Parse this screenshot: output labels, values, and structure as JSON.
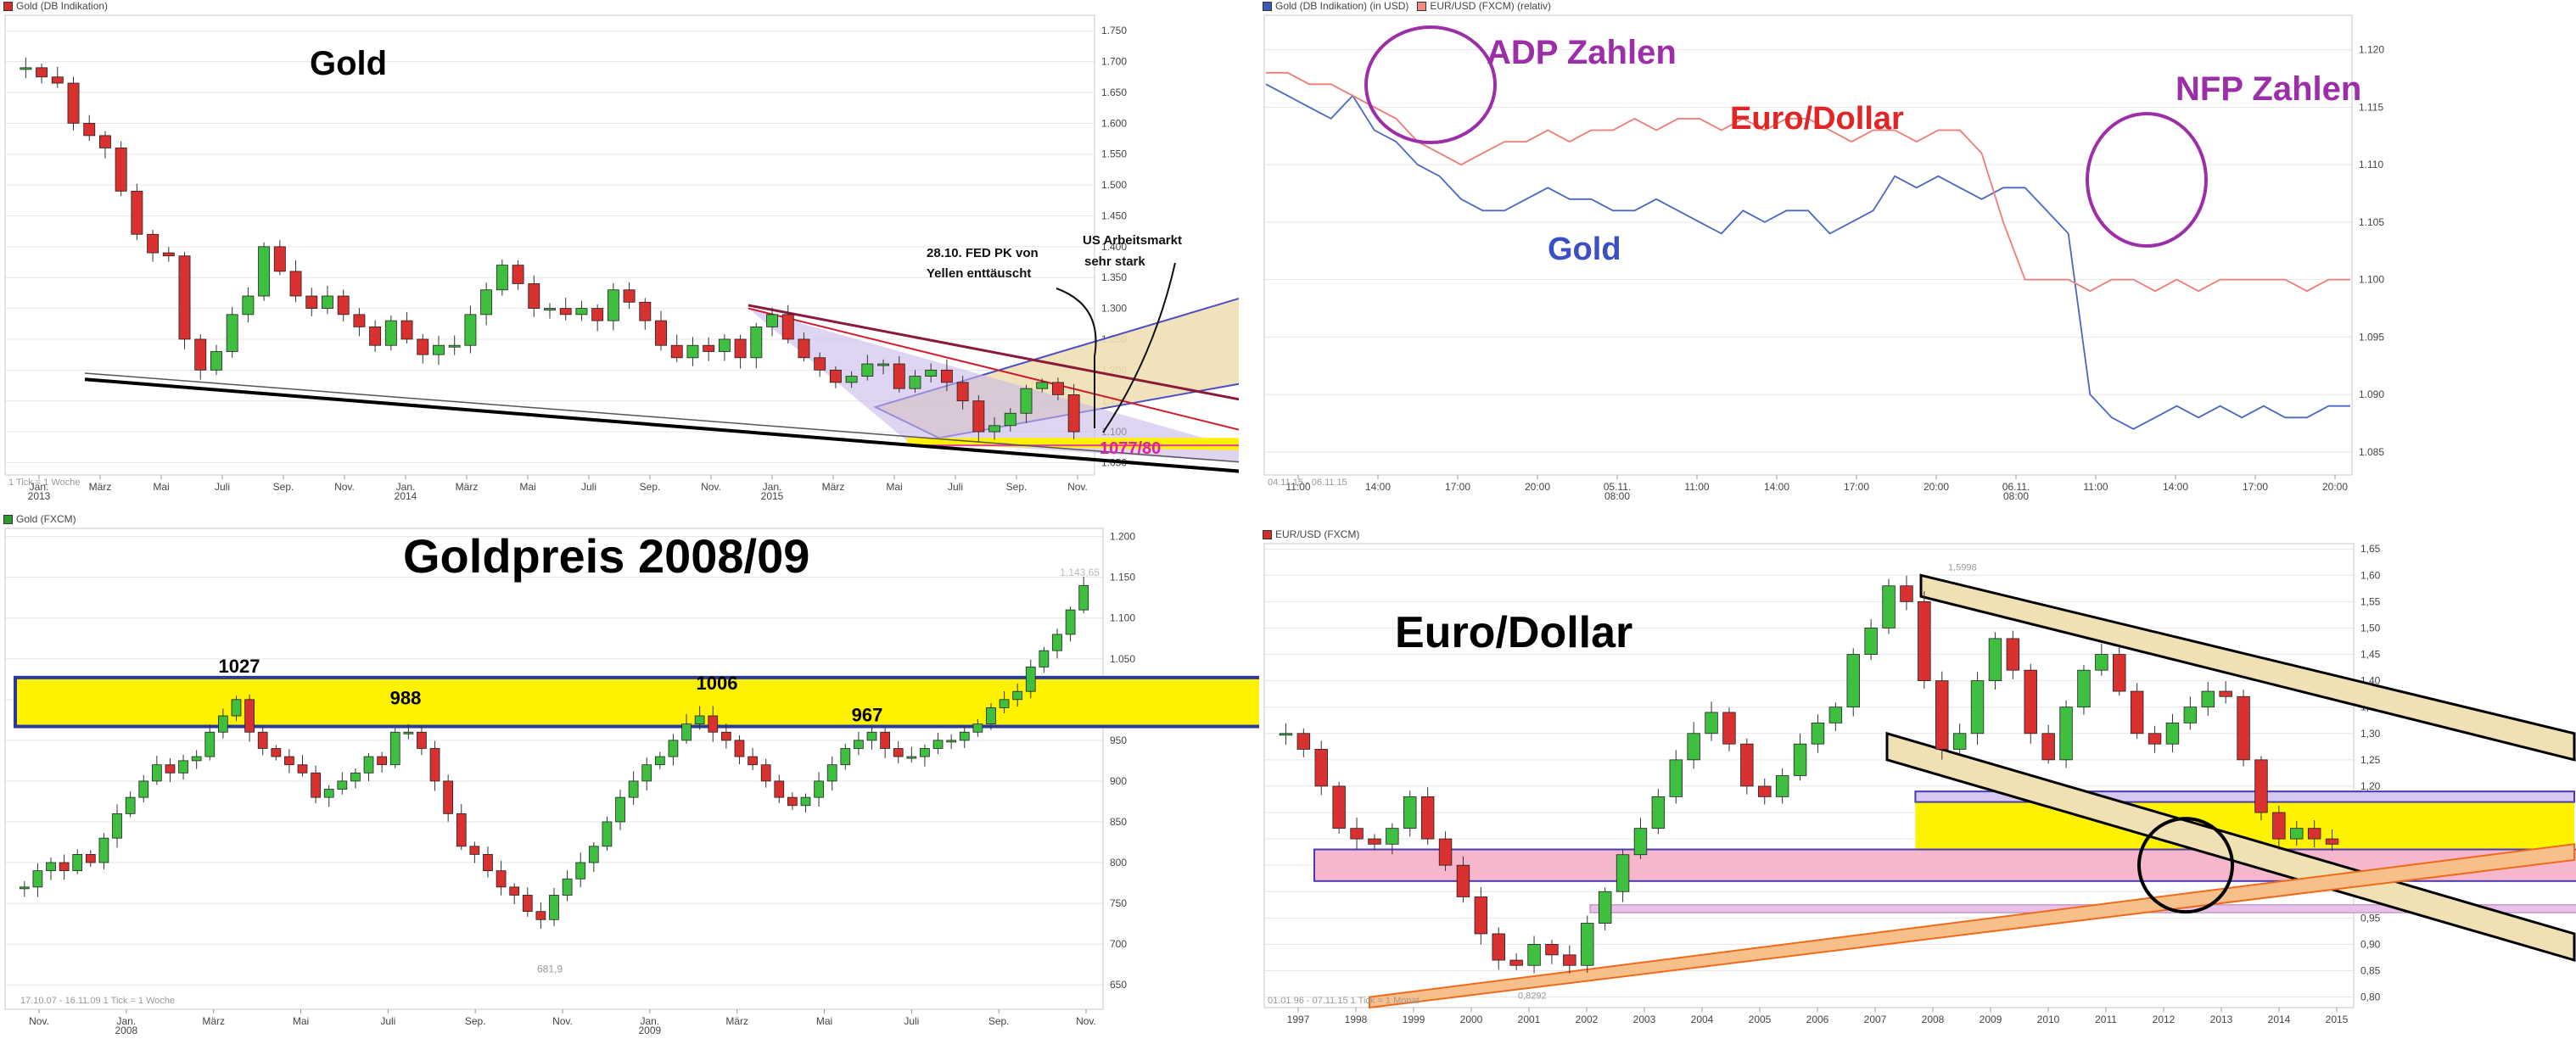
{
  "chart_data": [
    {
      "id": "gold_weekly",
      "type": "candlestick",
      "legend": [
        {
          "label": "Gold (DB Indikation)",
          "color": "#d32f2f"
        }
      ],
      "title": "Gold",
      "y_ticks": [
        "1.750",
        "1.700",
        "1.650",
        "1.600",
        "1.550",
        "1.500",
        "1.450",
        "1.400",
        "1.350",
        "1.300",
        "1.250",
        "1.200",
        "1.150",
        "1.100",
        "1.050"
      ],
      "y_tick_values": [
        1750,
        1700,
        1650,
        1600,
        1550,
        1500,
        1450,
        1400,
        1350,
        1300,
        1250,
        1200,
        1150,
        1100,
        1050
      ],
      "ylim": [
        1030,
        1775
      ],
      "x_labels": [
        "Jan.\n2013",
        "März",
        "Mai",
        "Juli",
        "Sep.",
        "Nov.",
        "Jan.\n2014",
        "März",
        "Mai",
        "Juli",
        "Sep.",
        "Nov.",
        "Jan.\n2015",
        "März",
        "Mai",
        "Juli",
        "Sep.",
        "Nov."
      ],
      "footer": "1 Tick = 1 Woche",
      "price_path": [
        1690,
        1675,
        1665,
        1600,
        1580,
        1560,
        1490,
        1420,
        1390,
        1385,
        1250,
        1200,
        1230,
        1290,
        1320,
        1400,
        1360,
        1320,
        1300,
        1320,
        1290,
        1270,
        1240,
        1280,
        1250,
        1225,
        1240,
        1240,
        1290,
        1330,
        1370,
        1340,
        1300,
        1300,
        1290,
        1300,
        1280,
        1330,
        1310,
        1280,
        1240,
        1220,
        1240,
        1230,
        1250,
        1220,
        1270,
        1290,
        1250,
        1220,
        1200,
        1180,
        1190,
        1210,
        1210,
        1170,
        1190,
        1200,
        1180,
        1150,
        1100,
        1110,
        1130,
        1170,
        1180,
        1160,
        1100
      ],
      "annotations": [
        {
          "text": "28.10. FED PK von",
          "kind": "note"
        },
        {
          "text": "Yellen enttäuscht",
          "kind": "note"
        },
        {
          "text": "US Arbeitsmarkt",
          "kind": "note"
        },
        {
          "text": "sehr stark",
          "kind": "note"
        },
        {
          "text": "1077/80",
          "kind": "level"
        }
      ],
      "level_value": 1078
    },
    {
      "id": "intraday",
      "type": "line",
      "legend": [
        {
          "label": "Gold (DB Indikation) (in USD)",
          "color": "#3b5bb5"
        },
        {
          "label": "EUR/USD (FXCM) (relativ)",
          "color": "#f28b82"
        }
      ],
      "series": [
        {
          "name": "Gold",
          "color": "#4a67c4",
          "values": [
            1117,
            1116,
            1115,
            1114,
            1116,
            1113,
            1112,
            1110,
            1109,
            1107,
            1106,
            1106,
            1107,
            1108,
            1107,
            1107,
            1106,
            1106,
            1107,
            1106,
            1105,
            1104,
            1106,
            1105,
            1106,
            1106,
            1104,
            1105,
            1106,
            1109,
            1108,
            1109,
            1108,
            1107,
            1108,
            1108,
            1106,
            1104,
            1090,
            1088,
            1087,
            1088,
            1089,
            1088,
            1089,
            1088,
            1089,
            1088,
            1088,
            1089,
            1089
          ]
        },
        {
          "name": "Euro/Dollar",
          "color": "#f07b74",
          "values": [
            1118,
            1118,
            1117,
            1117,
            1116,
            1115,
            1114,
            1112,
            1111,
            1110,
            1111,
            1112,
            1112,
            1113,
            1112,
            1113,
            1113,
            1114,
            1113,
            1114,
            1114,
            1113,
            1114,
            1113,
            1114,
            1114,
            1113,
            1112,
            1113,
            1113,
            1112,
            1113,
            1113,
            1111,
            1105,
            1100,
            1100,
            1100,
            1099,
            1100,
            1100,
            1099,
            1100,
            1099,
            1100,
            1100,
            1100,
            1100,
            1099,
            1100,
            1100
          ]
        }
      ],
      "ylim": [
        1083,
        1123
      ],
      "y_ticks": [
        "1.120",
        "1.115",
        "1.110",
        "1.105",
        "1.100",
        "1.095",
        "1.090",
        "1.085"
      ],
      "y_tick_values": [
        1120,
        1115,
        1110,
        1105,
        1100,
        1095,
        1090,
        1085
      ],
      "x_labels": [
        "11:00",
        "14:00",
        "17:00",
        "20:00",
        "05.11.\n08:00",
        "11:00",
        "14:00",
        "17:00",
        "20:00",
        "06.11.\n08:00",
        "11:00",
        "14:00",
        "17:00",
        "20:00"
      ],
      "footer": "04.11.15 - 06.11.15",
      "annotations": [
        {
          "text": "ADP Zahlen",
          "color": "#9c2ea8"
        },
        {
          "text": "NFP Zahlen",
          "color": "#9c2ea8"
        },
        {
          "text": "Euro/Dollar",
          "color": "#e12424"
        },
        {
          "text": "Gold",
          "color": "#3b4fc4"
        }
      ]
    },
    {
      "id": "gold_2008_09",
      "type": "candlestick",
      "legend": [
        {
          "label": "Gold (FXCM)",
          "color": "#2e9a2e"
        }
      ],
      "title": "Goldpreis 2008/09",
      "y_ticks": [
        "1.200",
        "1.150",
        "1.100",
        "1.050",
        "1.000",
        "950",
        "900",
        "850",
        "800",
        "750",
        "700",
        "650"
      ],
      "y_tick_values": [
        1200,
        1150,
        1100,
        1050,
        1000,
        950,
        900,
        850,
        800,
        750,
        700,
        650
      ],
      "ylim": [
        620,
        1210
      ],
      "x_labels": [
        "Nov.",
        "Jan.\n2008",
        "März",
        "Mai",
        "Juli",
        "Sep.",
        "Nov.",
        "Jan.\n2009",
        "März",
        "Mai",
        "Juli",
        "Sep.",
        "Nov."
      ],
      "footer": "17.10.07 - 16.11.09   1 Tick = 1 Woche",
      "price_path": [
        770,
        790,
        800,
        790,
        810,
        800,
        830,
        860,
        880,
        900,
        920,
        910,
        925,
        930,
        960,
        980,
        1000,
        960,
        940,
        930,
        920,
        910,
        880,
        890,
        900,
        910,
        930,
        920,
        960,
        960,
        940,
        900,
        860,
        820,
        810,
        790,
        770,
        760,
        740,
        730,
        760,
        780,
        800,
        820,
        850,
        880,
        900,
        920,
        930,
        950,
        970,
        980,
        960,
        950,
        930,
        920,
        900,
        880,
        870,
        880,
        900,
        920,
        940,
        950,
        960,
        940,
        930,
        930,
        940,
        950,
        950,
        960,
        970,
        990,
        1000,
        1010,
        1040,
        1060,
        1080,
        1110,
        1140
      ],
      "levels": [
        {
          "label": "1027",
          "value": 1027
        },
        {
          "label": "988",
          "value": 988
        },
        {
          "label": "1006",
          "value": 1006
        },
        {
          "label": "967",
          "value": 967
        }
      ],
      "extreme_labels": [
        {
          "text": "681,9",
          "value": 681.9
        },
        {
          "text": "1.143,65",
          "value": 1143.65
        }
      ]
    },
    {
      "id": "eurusd_monthly",
      "type": "candlestick",
      "legend": [
        {
          "label": "EUR/USD (FXCM)",
          "color": "#d32f2f"
        }
      ],
      "title": "Euro/Dollar",
      "y_ticks": [
        "1,65",
        "1,60",
        "1,55",
        "1,50",
        "1,45",
        "1,40",
        "1,35",
        "1,30",
        "1,25",
        "1,20",
        "1,15",
        "1,10",
        "1,05",
        "1,00",
        "0,95",
        "0,90",
        "0,85",
        "0,80"
      ],
      "y_tick_values": [
        1.65,
        1.6,
        1.55,
        1.5,
        1.45,
        1.4,
        1.35,
        1.3,
        1.25,
        1.2,
        1.15,
        1.1,
        1.05,
        1.0,
        0.95,
        0.9,
        0.85,
        0.8
      ],
      "ylim": [
        0.78,
        1.66
      ],
      "x_labels": [
        "1997",
        "1998",
        "1999",
        "2000",
        "2001",
        "2002",
        "2003",
        "2004",
        "2005",
        "2006",
        "2007",
        "2008",
        "2009",
        "2010",
        "2011",
        "2012",
        "2013",
        "2014",
        "2015"
      ],
      "footer": "01.01.96 - 07.11.15   1 Tick = 1 Monat",
      "price_path": [
        1.3,
        1.27,
        1.2,
        1.12,
        1.1,
        1.09,
        1.12,
        1.18,
        1.1,
        1.05,
        0.99,
        0.92,
        0.87,
        0.86,
        0.9,
        0.88,
        0.86,
        0.94,
        1.0,
        1.07,
        1.12,
        1.18,
        1.25,
        1.3,
        1.34,
        1.28,
        1.2,
        1.18,
        1.22,
        1.28,
        1.32,
        1.35,
        1.45,
        1.5,
        1.58,
        1.55,
        1.4,
        1.27,
        1.3,
        1.4,
        1.48,
        1.42,
        1.3,
        1.25,
        1.35,
        1.42,
        1.45,
        1.38,
        1.3,
        1.28,
        1.32,
        1.35,
        1.38,
        1.37,
        1.25,
        1.15,
        1.1,
        1.12,
        1.1,
        1.09
      ],
      "extreme_labels": [
        {
          "text": "1,5998",
          "value": 1.5998
        },
        {
          "text": "0,8292",
          "value": 0.8292
        }
      ]
    }
  ]
}
